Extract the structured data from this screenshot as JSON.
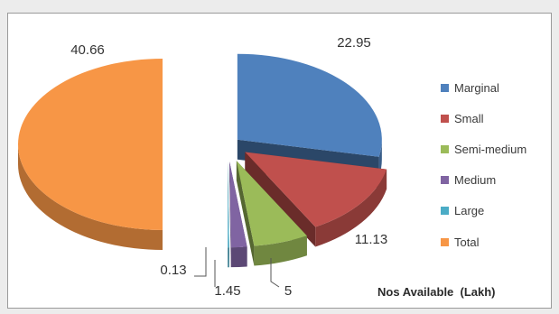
{
  "chart_data": {
    "type": "pie",
    "style": "exploded 3d pie",
    "series_name": "Nos Available  (Lakh)",
    "categories": [
      "Marginal",
      "Small",
      "Semi-medium",
      "Medium",
      "Large",
      "Total"
    ],
    "values": [
      22.95,
      11.13,
      5,
      1.45,
      0.13,
      40.66
    ],
    "data_labels": [
      "22.95",
      "11.13",
      "5",
      "1.45",
      "0.13",
      "40.66"
    ],
    "colors": [
      "#4f81bd",
      "#c0504d",
      "#9bbb59",
      "#8064a2",
      "#4bacc6",
      "#f79646"
    ],
    "legend_position": "right"
  }
}
